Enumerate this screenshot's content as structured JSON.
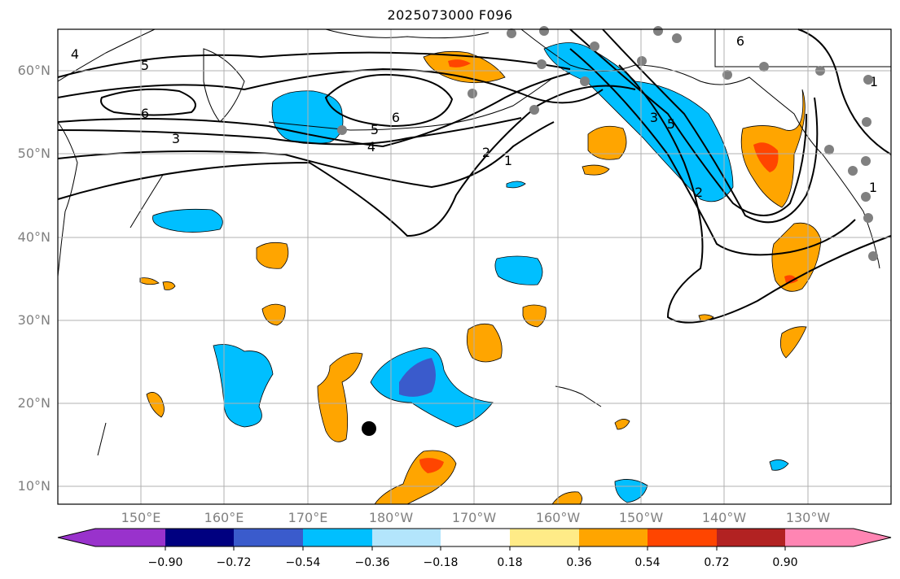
{
  "title": "2025073000 F096",
  "lat_labels": [
    "60°N",
    "50°N",
    "40°N",
    "30°N",
    "20°N",
    "10°N"
  ],
  "lon_labels": [
    "150°E",
    "160°E",
    "170°E",
    "180°W",
    "170°W",
    "160°W",
    "150°W",
    "140°W",
    "130°W"
  ],
  "contour_labels": [
    "4",
    "5",
    "6",
    "3",
    "6",
    "5",
    "4",
    "2",
    "1",
    "6",
    "3",
    "5",
    "2",
    "1",
    "1"
  ],
  "colorbar": {
    "tick_labels": [
      "−0.90",
      "−0.72",
      "−0.54",
      "−0.36",
      "−0.18",
      "0.18",
      "0.36",
      "0.54",
      "0.72",
      "0.90"
    ],
    "colors": [
      "#9932CC",
      "#000080",
      "#3A5BCC",
      "#00BFFF",
      "#B3E5FC",
      "#FFFFFF",
      "#FFEB87",
      "#FFA500",
      "#FF4500",
      "#B22222",
      "#FF85B3"
    ]
  },
  "colors": {
    "light_blue": "#00BFFF",
    "dark_blue": "#3A5BCC",
    "orange": "#FFA500",
    "red_orange": "#FF4500",
    "gridline": "#b0b0b0",
    "station_dot": "#808080"
  }
}
